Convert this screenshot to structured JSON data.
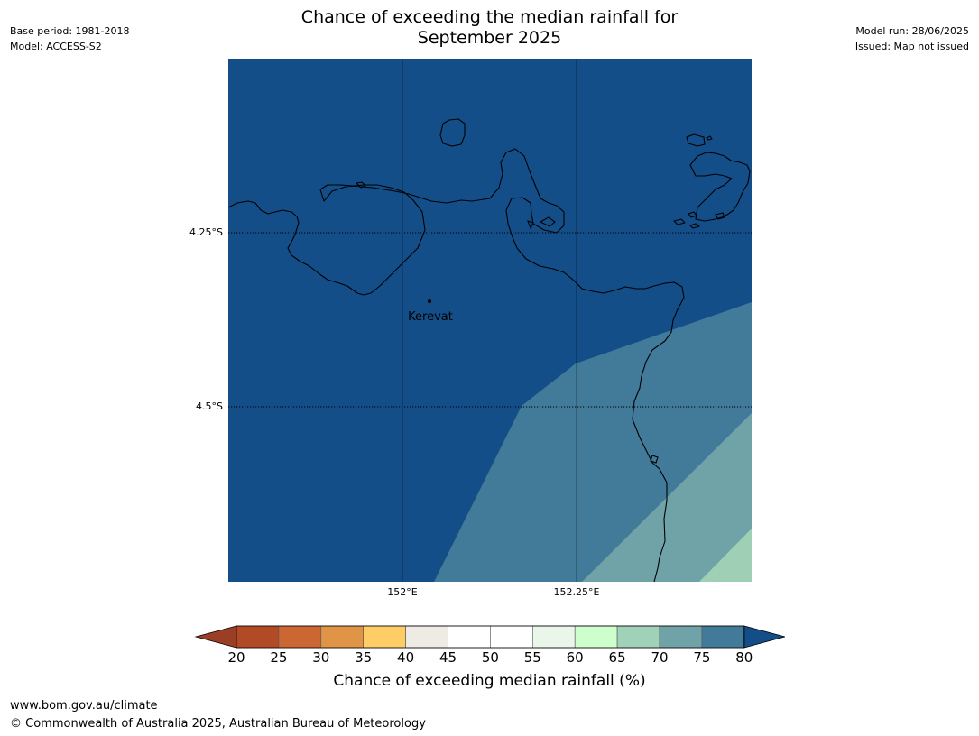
{
  "title_line1": "Chance of exceeding the median rainfall for",
  "title_line2": "September 2025",
  "meta_left": {
    "base_period": "Base period: 1981-2018",
    "model": "Model: ACCESS-S2"
  },
  "meta_right": {
    "model_run": "Model run: 28/06/2025",
    "issued": "Issued: Map not issued"
  },
  "map": {
    "place_label": "Kerevat",
    "lat_labels": [
      "4.25°S",
      "4.5°S"
    ],
    "lon_labels": [
      "152°E",
      "152.25°E"
    ],
    "ocean_color": "#144e88",
    "band_colors": [
      "#427a99",
      "#6fa3a8",
      "#9fd0b6"
    ],
    "coast_color": "#000000"
  },
  "colorbar": {
    "title": "Chance of exceeding median rainfall (%)",
    "ticks": [
      "20",
      "25",
      "30",
      "35",
      "40",
      "45",
      "50",
      "55",
      "60",
      "65",
      "70",
      "75",
      "80"
    ],
    "colors": [
      "#b24a26",
      "#cc6633",
      "#e09445",
      "#ffcd66",
      "#eeeae4",
      "#ffffff",
      "#ffffff",
      "#eaf6ea",
      "#ccffcc",
      "#a0d2b9",
      "#6fa3a8",
      "#427a99"
    ],
    "under_color": "#9b3e26",
    "over_color": "#144e88"
  },
  "footer": {
    "url": "www.bom.gov.au/climate",
    "copyright": "© Commonwealth of Australia 2025, Australian Bureau of Meteorology"
  }
}
